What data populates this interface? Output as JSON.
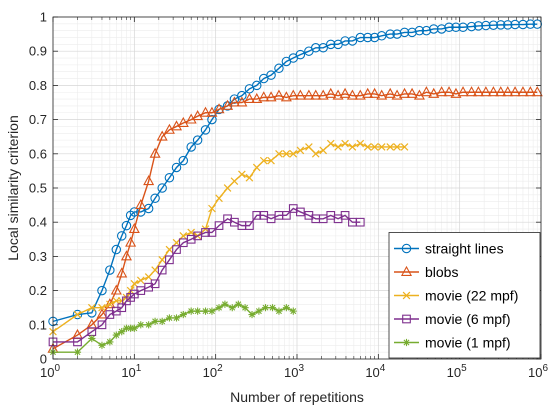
{
  "chart_data": {
    "type": "line",
    "title": "",
    "xlabel": "Number of repetitions",
    "ylabel": "Local similarity criterion",
    "xscale": "log",
    "xlim": [
      1,
      1000000
    ],
    "ylim": [
      0,
      1
    ],
    "grid": true,
    "legend_position": "bottom-right",
    "x_tick_labels": [
      {
        "base": "10",
        "exp": "0"
      },
      {
        "base": "10",
        "exp": "1"
      },
      {
        "base": "10",
        "exp": "2"
      },
      {
        "base": "10",
        "exp": "3"
      },
      {
        "base": "10",
        "exp": "4"
      },
      {
        "base": "10",
        "exp": "5"
      },
      {
        "base": "10",
        "exp": "6"
      }
    ],
    "y_tick_labels": [
      "0",
      "0.1",
      "0.2",
      "0.3",
      "0.4",
      "0.5",
      "0.6",
      "0.7",
      "0.8",
      "0.9",
      "1"
    ],
    "series": [
      {
        "name": "straight lines",
        "color": "#0072BD",
        "marker": "circle",
        "x": [
          1,
          2,
          3,
          4,
          5,
          6,
          7,
          8,
          9,
          10,
          12,
          15,
          18,
          22,
          27,
          33,
          40,
          50,
          60,
          75,
          90,
          110,
          140,
          170,
          210,
          260,
          320,
          390,
          480,
          600,
          740,
          900,
          1100,
          1400,
          1700,
          2100,
          2600,
          3200,
          3900,
          4800,
          6000,
          7400,
          9000,
          11000,
          14000,
          17000,
          21000,
          26000,
          32000,
          39000,
          48000,
          60000,
          74000,
          90000,
          110000,
          140000,
          170000,
          210000,
          260000,
          320000,
          390000,
          480000,
          600000,
          740000,
          900000
        ],
        "y": [
          0.11,
          0.13,
          0.135,
          0.2,
          0.26,
          0.32,
          0.36,
          0.39,
          0.42,
          0.43,
          0.43,
          0.44,
          0.47,
          0.5,
          0.53,
          0.56,
          0.58,
          0.62,
          0.64,
          0.67,
          0.7,
          0.73,
          0.74,
          0.76,
          0.77,
          0.79,
          0.8,
          0.82,
          0.83,
          0.85,
          0.87,
          0.88,
          0.89,
          0.9,
          0.91,
          0.91,
          0.92,
          0.92,
          0.93,
          0.93,
          0.94,
          0.94,
          0.94,
          0.945,
          0.95,
          0.95,
          0.955,
          0.955,
          0.96,
          0.96,
          0.965,
          0.965,
          0.97,
          0.97,
          0.97,
          0.972,
          0.974,
          0.975,
          0.976,
          0.977,
          0.977,
          0.978,
          0.978,
          0.979,
          0.979
        ]
      },
      {
        "name": "blobs",
        "color": "#D95319",
        "marker": "triangle",
        "x": [
          1,
          2,
          3,
          4,
          5,
          6,
          7,
          8,
          9,
          10,
          12,
          15,
          18,
          22,
          27,
          33,
          40,
          50,
          60,
          75,
          90,
          110,
          140,
          170,
          210,
          260,
          320,
          390,
          480,
          600,
          740,
          900,
          1100,
          1400,
          1700,
          2100,
          2600,
          3200,
          3900,
          4800,
          6000,
          7400,
          9000,
          11000,
          14000,
          17000,
          21000,
          26000,
          32000,
          39000,
          48000,
          60000,
          74000,
          90000,
          110000,
          140000,
          170000,
          210000,
          260000,
          320000,
          390000,
          480000,
          600000,
          740000,
          900000
        ],
        "y": [
          0.03,
          0.07,
          0.1,
          0.13,
          0.16,
          0.2,
          0.25,
          0.3,
          0.34,
          0.38,
          0.45,
          0.52,
          0.6,
          0.65,
          0.67,
          0.68,
          0.69,
          0.7,
          0.71,
          0.72,
          0.72,
          0.73,
          0.74,
          0.75,
          0.75,
          0.76,
          0.76,
          0.765,
          0.765,
          0.77,
          0.765,
          0.77,
          0.77,
          0.77,
          0.77,
          0.77,
          0.775,
          0.77,
          0.775,
          0.77,
          0.77,
          0.775,
          0.775,
          0.77,
          0.775,
          0.77,
          0.775,
          0.775,
          0.77,
          0.78,
          0.775,
          0.78,
          0.78,
          0.775,
          0.78,
          0.78,
          0.78,
          0.78,
          0.78,
          0.78,
          0.78,
          0.78,
          0.78,
          0.78,
          0.78
        ]
      },
      {
        "name": "movie (22 mpf)",
        "color": "#EDB120",
        "marker": "x",
        "x": [
          1,
          2,
          3,
          4,
          5,
          6,
          7,
          8,
          9,
          10,
          12,
          15,
          18,
          22,
          27,
          33,
          40,
          50,
          60,
          75,
          90,
          110,
          140,
          170,
          210,
          260,
          320,
          390,
          480,
          600,
          740,
          900,
          1100,
          1400,
          1700,
          2100,
          2600,
          3200,
          3900,
          4800,
          6000,
          7400,
          9000,
          11000,
          14000,
          17000,
          21000
        ],
        "y": [
          0.08,
          0.13,
          0.15,
          0.15,
          0.16,
          0.17,
          0.17,
          0.18,
          0.2,
          0.22,
          0.23,
          0.24,
          0.26,
          0.29,
          0.32,
          0.34,
          0.36,
          0.37,
          0.36,
          0.38,
          0.44,
          0.47,
          0.5,
          0.52,
          0.54,
          0.53,
          0.56,
          0.58,
          0.58,
          0.6,
          0.6,
          0.6,
          0.61,
          0.62,
          0.6,
          0.61,
          0.63,
          0.62,
          0.63,
          0.62,
          0.63,
          0.62,
          0.62,
          0.62,
          0.62,
          0.62,
          0.62
        ]
      },
      {
        "name": "movie (6 mpf)",
        "color": "#7E2F8E",
        "marker": "square",
        "x": [
          1,
          2,
          3,
          4,
          5,
          6,
          7,
          8,
          9,
          10,
          12,
          15,
          18,
          22,
          27,
          33,
          40,
          50,
          60,
          75,
          90,
          110,
          140,
          170,
          210,
          260,
          320,
          390,
          480,
          600,
          740,
          900,
          1100,
          1400,
          1700,
          2100,
          2600,
          3200,
          3900,
          4800,
          6000
        ],
        "y": [
          0.05,
          0.05,
          0.08,
          0.1,
          0.13,
          0.14,
          0.15,
          0.17,
          0.18,
          0.19,
          0.2,
          0.21,
          0.22,
          0.26,
          0.29,
          0.32,
          0.34,
          0.35,
          0.36,
          0.37,
          0.37,
          0.39,
          0.41,
          0.4,
          0.39,
          0.39,
          0.42,
          0.42,
          0.41,
          0.42,
          0.42,
          0.44,
          0.43,
          0.42,
          0.41,
          0.41,
          0.42,
          0.41,
          0.42,
          0.4,
          0.4
        ]
      },
      {
        "name": "movie (1 mpf)",
        "color": "#77AC30",
        "marker": "star",
        "x": [
          1,
          2,
          3,
          4,
          5,
          6,
          7,
          8,
          9,
          10,
          12,
          15,
          18,
          22,
          27,
          33,
          40,
          50,
          60,
          75,
          90,
          110,
          130,
          160,
          190,
          230,
          280,
          340,
          410,
          500,
          600,
          740,
          900
        ],
        "y": [
          0.02,
          0.02,
          0.06,
          0.04,
          0.05,
          0.07,
          0.08,
          0.09,
          0.09,
          0.09,
          0.1,
          0.1,
          0.11,
          0.11,
          0.12,
          0.12,
          0.13,
          0.14,
          0.14,
          0.14,
          0.14,
          0.15,
          0.16,
          0.15,
          0.16,
          0.15,
          0.13,
          0.14,
          0.15,
          0.15,
          0.14,
          0.15,
          0.14
        ]
      }
    ]
  }
}
